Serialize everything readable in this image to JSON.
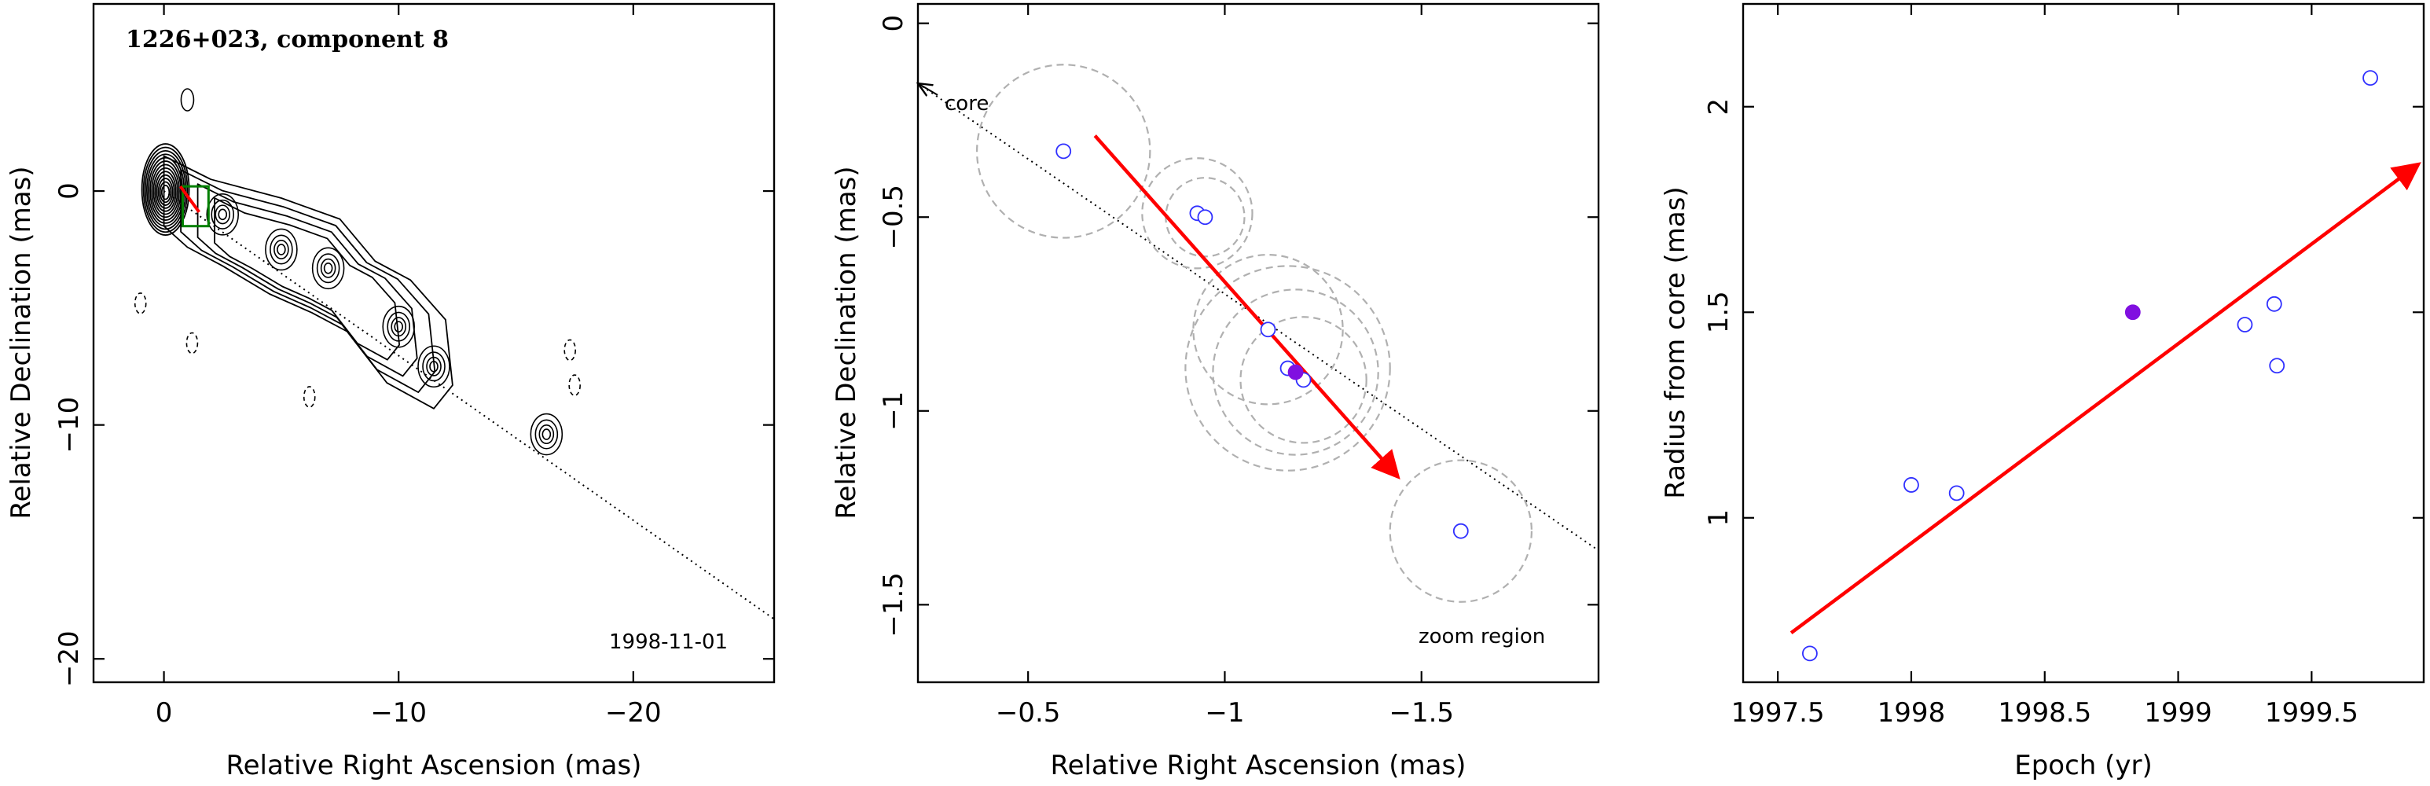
{
  "chart_data": [
    {
      "type": "contour",
      "title": "1226+023, component 8",
      "xlabel": "Relative Right Ascension (mas)",
      "ylabel": "Relative Declination (mas)",
      "xlim": [
        3,
        -26
      ],
      "ylim": [
        -21,
        8
      ],
      "xticks": [
        0,
        -10,
        -20
      ],
      "yticks": [
        0,
        -10,
        -20
      ],
      "epoch_label": "1998-11-01",
      "core": {
        "x": 0,
        "y": 0
      },
      "jet_knots": [
        {
          "x": -2.5,
          "y": -1.0
        },
        {
          "x": -5.0,
          "y": -2.5
        },
        {
          "x": -7.0,
          "y": -3.3
        },
        {
          "x": -10.0,
          "y": -5.8
        },
        {
          "x": -11.5,
          "y": -7.5
        },
        {
          "x": -16.3,
          "y": -10.4
        }
      ],
      "dashed_contours": [
        {
          "x": 1.0,
          "y": -4.8
        },
        {
          "x": -1.2,
          "y": -6.5
        },
        {
          "x": -6.2,
          "y": -8.8
        },
        {
          "x": -17.3,
          "y": -6.8
        },
        {
          "x": -17.5,
          "y": -8.3
        }
      ],
      "isolated_contours": [
        {
          "x": -1.0,
          "y": 3.9
        }
      ],
      "dotted_line": {
        "from": [
          0,
          0
        ],
        "to": [
          -26,
          -18.3
        ]
      },
      "zoom_box": {
        "x": [
          -0.8,
          -1.9
        ],
        "y": [
          0.2,
          -1.5
        ]
      }
    },
    {
      "type": "scatter",
      "xlabel": "Relative Right Ascension (mas)",
      "ylabel": "Relative Declination (mas)",
      "xlim": [
        -0.22,
        -1.95
      ],
      "ylim": [
        -1.7,
        0.05
      ],
      "xticks": [
        -0.5,
        -1,
        -1.5
      ],
      "xtick_labels": [
        "−0.5",
        "−1",
        "−1.5"
      ],
      "yticks": [
        0,
        -0.5,
        -1,
        -1.5
      ],
      "ytick_labels": [
        "0",
        "−0.5",
        "−1",
        "−1.5"
      ],
      "core_label": "core",
      "zoom_label": "zoom region",
      "points": [
        {
          "x": -0.59,
          "y": -0.33,
          "r": 0.22,
          "filled": false
        },
        {
          "x": -0.93,
          "y": -0.49,
          "r": 0.14,
          "filled": false
        },
        {
          "x": -0.95,
          "y": -0.5,
          "r": 0.1,
          "filled": false
        },
        {
          "x": -1.11,
          "y": -0.79,
          "r": 0.19,
          "filled": false
        },
        {
          "x": -1.16,
          "y": -0.89,
          "r": 0.26,
          "filled": false
        },
        {
          "x": -1.2,
          "y": -0.92,
          "r": 0.16,
          "filled": false
        },
        {
          "x": -1.18,
          "y": -0.9,
          "r": 0.21,
          "filled": true
        },
        {
          "x": -1.6,
          "y": -1.31,
          "r": 0.18,
          "filled": false
        }
      ],
      "trajectory_arrow": {
        "from": [
          -0.67,
          -0.29
        ],
        "to": [
          -1.44,
          -1.17
        ]
      },
      "dotted_line": {
        "from": [
          -0.22,
          -0.155
        ],
        "to": [
          -1.95,
          -1.36
        ]
      },
      "core_arrow": {
        "from": [
          -0.27,
          -0.185
        ],
        "to": [
          -0.22,
          -0.155
        ]
      }
    },
    {
      "type": "scatter",
      "xlabel": "Epoch (yr)",
      "ylabel": "Radius from core (mas)",
      "xlim": [
        1997.37,
        1999.92
      ],
      "ylim": [
        0.6,
        2.25
      ],
      "xticks": [
        1997.5,
        1998,
        1998.5,
        1999,
        1999.5
      ],
      "xtick_labels": [
        "1997.5",
        "1998",
        "1998.5",
        "1999",
        "1999.5"
      ],
      "yticks": [
        1,
        1.5,
        2
      ],
      "ytick_labels": [
        "1",
        "1.5",
        "2"
      ],
      "points": [
        {
          "x": 1997.62,
          "y": 0.67,
          "filled": false
        },
        {
          "x": 1998.0,
          "y": 1.08,
          "filled": false
        },
        {
          "x": 1998.17,
          "y": 1.06,
          "filled": false
        },
        {
          "x": 1998.83,
          "y": 1.5,
          "filled": true
        },
        {
          "x": 1999.25,
          "y": 1.47,
          "filled": false
        },
        {
          "x": 1999.36,
          "y": 1.52,
          "filled": false
        },
        {
          "x": 1999.37,
          "y": 1.37,
          "filled": false
        },
        {
          "x": 1999.72,
          "y": 2.07,
          "filled": false
        }
      ],
      "fit_arrow": {
        "from": [
          1997.55,
          0.72
        ],
        "to": [
          1999.9,
          1.86
        ]
      }
    }
  ],
  "colors": {
    "trajectory": "#ff0000",
    "points": "#3030ff",
    "filled_point": "#8010e0",
    "circles": "#b0b0b0",
    "zoom_box": "#008000"
  }
}
